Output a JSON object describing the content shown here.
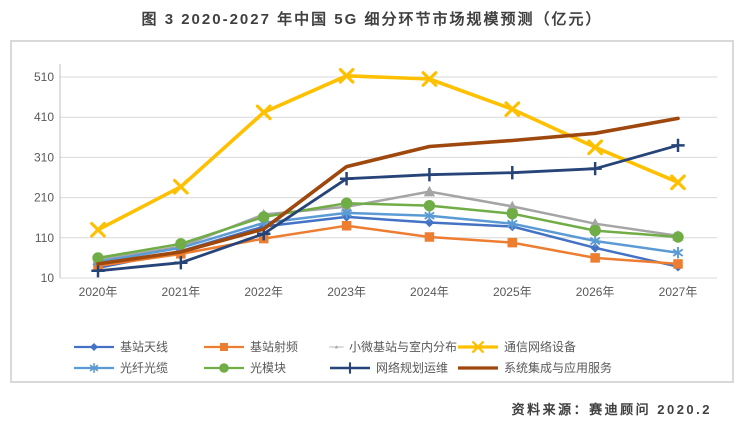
{
  "page": {
    "title": "图 3 2020-2027 年中国 5G 细分环节市场规模预测（亿元）",
    "source": "资料来源：赛迪顾问  2020.2"
  },
  "chart_data": {
    "type": "line",
    "title": "图 3 2020-2027 年中国 5G 细分环节市场规模预测（亿元）",
    "unit": "亿元",
    "categories": [
      "2020年",
      "2021年",
      "2022年",
      "2023年",
      "2024年",
      "2025年",
      "2026年",
      "2027年"
    ],
    "ylim": [
      10,
      510
    ],
    "yticks": [
      10,
      110,
      210,
      310,
      410,
      510
    ],
    "grid": "horizontal-only",
    "legend_position": "bottom",
    "legend_columns": 4,
    "axis_label_color": "#595959",
    "gridline_color": "#d9d9d9",
    "series": [
      {
        "name": "基站天线",
        "color": "#4472C4",
        "marker": "diamond",
        "values": [
          35,
          77,
          138,
          162,
          148,
          138,
          85,
          38
        ]
      },
      {
        "name": "基站射频",
        "color": "#ED7D31",
        "marker": "square",
        "values": [
          40,
          70,
          108,
          140,
          112,
          98,
          60,
          45
        ]
      },
      {
        "name": "小微基站与室内分布",
        "color": "#A5A5A5",
        "marker": "triangle",
        "values": [
          55,
          88,
          168,
          187,
          225,
          188,
          145,
          115
        ]
      },
      {
        "name": "通信网络设备",
        "color": "#FFC000",
        "marker": "x",
        "values": [
          130,
          237,
          422,
          513,
          505,
          430,
          335,
          248
        ]
      },
      {
        "name": "光纤光缆",
        "color": "#5B9BD5",
        "marker": "asterisk",
        "values": [
          50,
          85,
          147,
          172,
          165,
          145,
          102,
          73
        ]
      },
      {
        "name": "光模块",
        "color": "#70AD47",
        "marker": "circle",
        "values": [
          60,
          95,
          162,
          196,
          190,
          170,
          128,
          112
        ]
      },
      {
        "name": "网络规划运维",
        "color": "#264478",
        "marker": "plus",
        "values": [
          28,
          48,
          120,
          257,
          267,
          272,
          282,
          340
        ]
      },
      {
        "name": "系统集成与应用服务",
        "color": "#9E480E",
        "marker": "none",
        "values": [
          45,
          75,
          132,
          287,
          337,
          352,
          370,
          407
        ]
      }
    ]
  }
}
